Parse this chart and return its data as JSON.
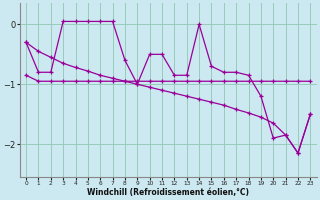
{
  "xlabel": "Windchill (Refroidissement éolien,°C)",
  "bg_color": "#cce8f0",
  "plot_bg_color": "#cce8f0",
  "line_color": "#990099",
  "grid_color": "#99ccbb",
  "xlim": [
    -0.5,
    23.5
  ],
  "ylim": [
    -2.55,
    0.35
  ],
  "yticks": [
    0,
    -1,
    -2
  ],
  "xticks": [
    0,
    1,
    2,
    3,
    4,
    5,
    6,
    7,
    8,
    9,
    10,
    11,
    12,
    13,
    14,
    15,
    16,
    17,
    18,
    19,
    20,
    21,
    22,
    23
  ],
  "hours": [
    0,
    1,
    2,
    3,
    4,
    5,
    6,
    7,
    8,
    9,
    10,
    11,
    12,
    13,
    14,
    15,
    16,
    17,
    18,
    19,
    20,
    21,
    22,
    23
  ],
  "upper": [
    -0.3,
    -0.8,
    -0.8,
    0.05,
    0.05,
    0.05,
    0.05,
    0.05,
    -0.6,
    -1.0,
    -0.5,
    -0.5,
    -0.85,
    -0.85,
    0.0,
    -0.7,
    -0.8,
    -0.8,
    -0.85,
    -1.2,
    -1.9,
    -1.85,
    -2.15,
    -1.5
  ],
  "flat": [
    -0.85,
    -0.95,
    -0.95,
    -0.95,
    -0.95,
    -0.95,
    -0.95,
    -0.95,
    -0.95,
    -0.95,
    -0.95,
    -0.95,
    -0.95,
    -0.95,
    -0.95,
    -0.95,
    -0.95,
    -0.95,
    -0.95,
    -0.95,
    -0.95,
    -0.95,
    -0.95,
    -0.95
  ],
  "lower": [
    -0.3,
    -0.45,
    -0.55,
    -0.65,
    -0.72,
    -0.78,
    -0.85,
    -0.9,
    -0.95,
    -1.0,
    -1.05,
    -1.1,
    -1.15,
    -1.2,
    -1.25,
    -1.3,
    -1.35,
    -1.42,
    -1.48,
    -1.55,
    -1.65,
    -1.85,
    -2.15,
    -1.5
  ]
}
